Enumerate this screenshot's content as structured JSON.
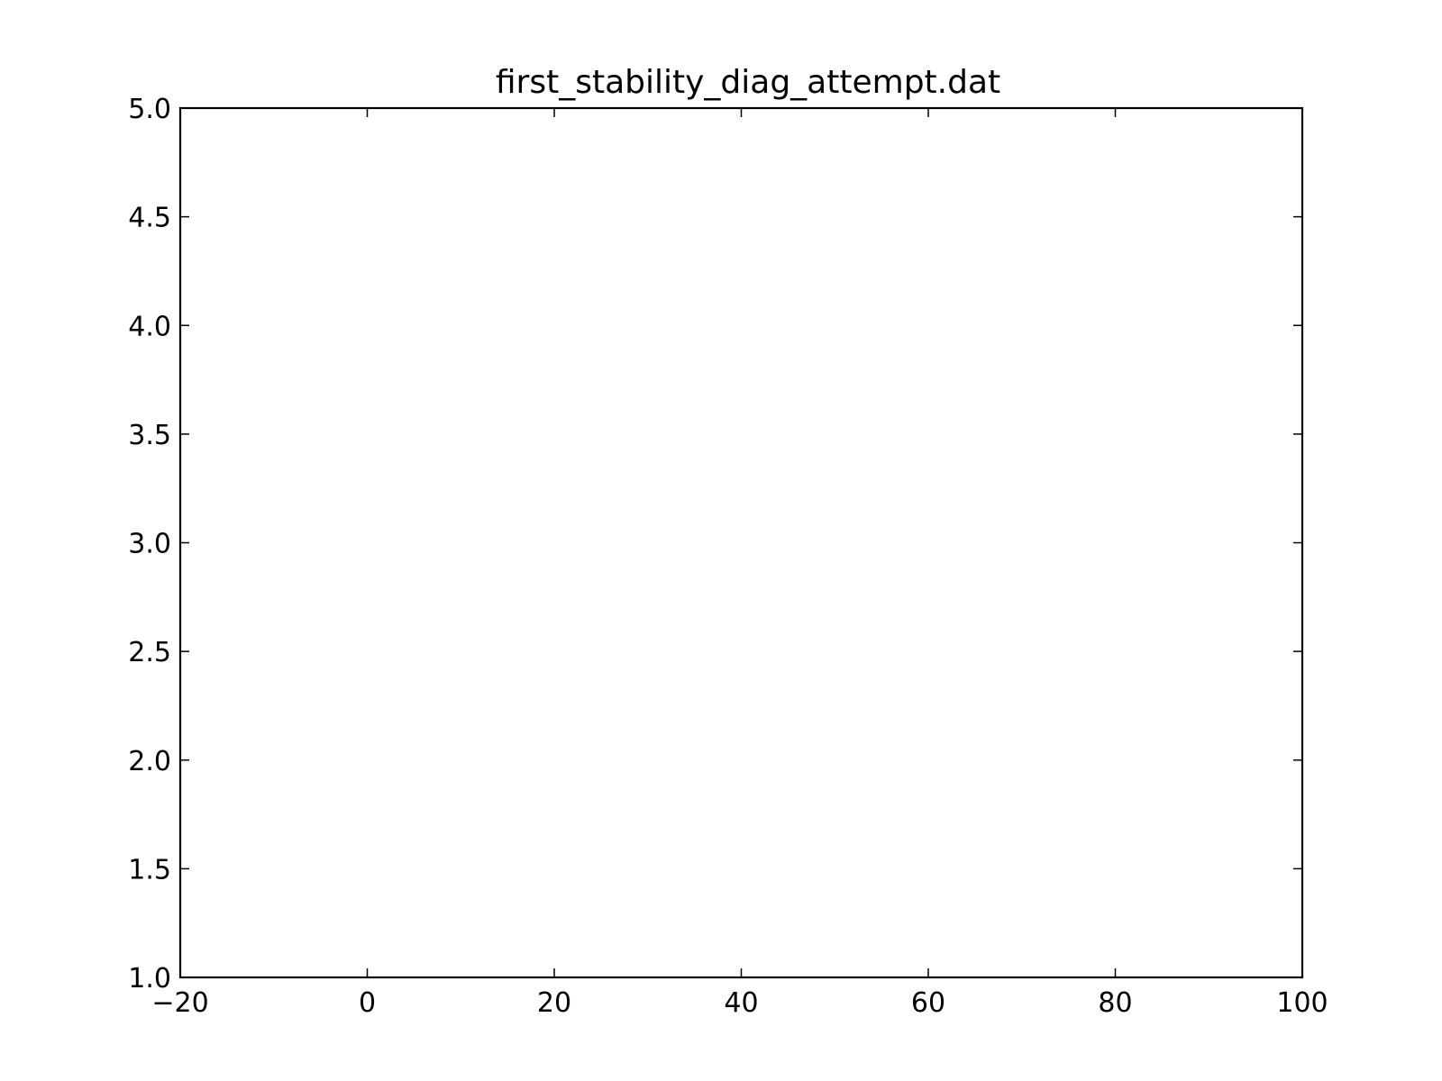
{
  "chart_data": {
    "type": "line",
    "title": "first_stability_diag_attempt.dat",
    "xlabel": "",
    "ylabel": "",
    "xlim": [
      -20,
      100
    ],
    "ylim": [
      1.0,
      5.0
    ],
    "x_ticks": [
      {
        "value": -20,
        "label": "−20"
      },
      {
        "value": 0,
        "label": "0"
      },
      {
        "value": 20,
        "label": "20"
      },
      {
        "value": 40,
        "label": "40"
      },
      {
        "value": 60,
        "label": "60"
      },
      {
        "value": 80,
        "label": "80"
      },
      {
        "value": 100,
        "label": "100"
      }
    ],
    "y_ticks": [
      {
        "value": 1.0,
        "label": "1.0"
      },
      {
        "value": 1.5,
        "label": "1.5"
      },
      {
        "value": 2.0,
        "label": "2.0"
      },
      {
        "value": 2.5,
        "label": "2.5"
      },
      {
        "value": 3.0,
        "label": "3.0"
      },
      {
        "value": 3.5,
        "label": "3.5"
      },
      {
        "value": 4.0,
        "label": "4.0"
      },
      {
        "value": 4.5,
        "label": "4.5"
      },
      {
        "value": 5.0,
        "label": "5.0"
      }
    ],
    "series": [],
    "grid": false,
    "legend": "none",
    "colors": {
      "axes": "#000000",
      "background": "#ffffff"
    }
  }
}
